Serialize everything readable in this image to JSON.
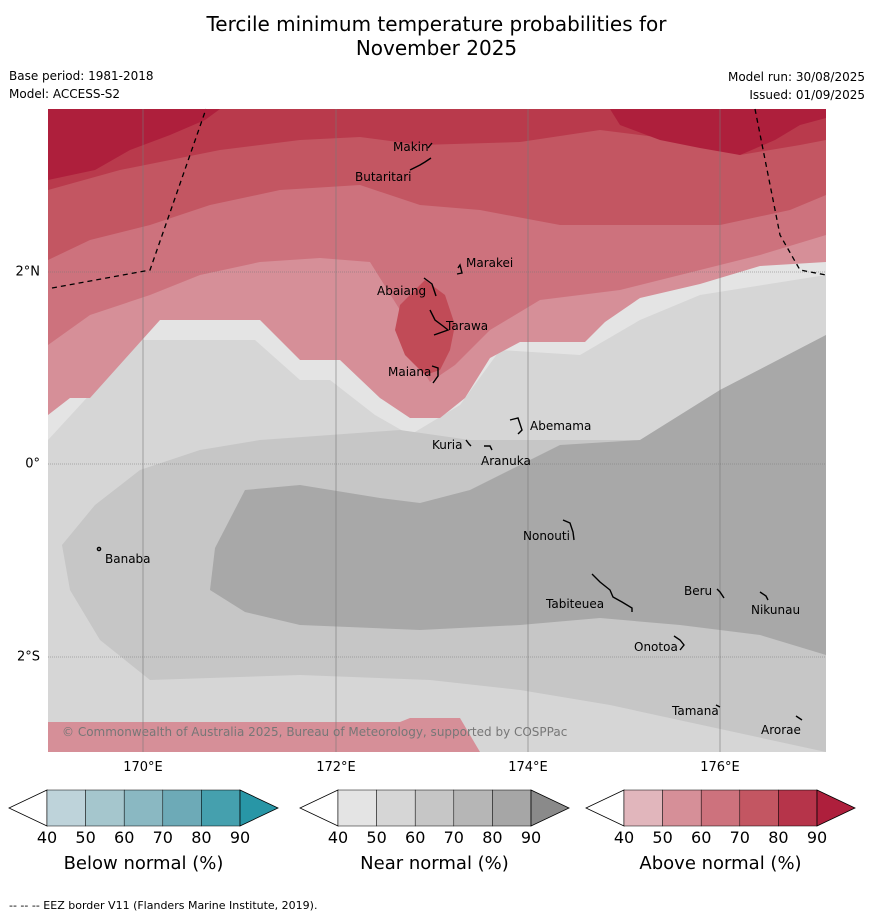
{
  "title_line1": "Tercile minimum temperature probabilities for",
  "title_line2": "November 2025",
  "meta_left": {
    "base_period": "Base period: 1981-2018",
    "model": "Model: ACCESS-S2"
  },
  "meta_right": {
    "model_run": "Model run: 30/08/2025",
    "issued": "Issued: 01/09/2025"
  },
  "map": {
    "x_ticks": [
      "170°E",
      "172°E",
      "174°E",
      "176°E"
    ],
    "y_ticks": [
      "2°N",
      "0°",
      "2°S"
    ],
    "places": [
      "Makin",
      "Butaritari",
      "Marakei",
      "Abaiang",
      "Tarawa",
      "Maiana",
      "Abemama",
      "Kuria",
      "Aranuka",
      "Nonouti",
      "Banaba",
      "Beru",
      "Tabiteuea",
      "Nikunau",
      "Onotoa",
      "Tamana",
      "Arorae"
    ],
    "copyright": "© Commonwealth of Australia 2025, Bureau of Meteorology, supported by COSPPac"
  },
  "colorbars": [
    {
      "label": "Below normal (%)",
      "ticks": [
        "40",
        "50",
        "60",
        "70",
        "80",
        "90"
      ],
      "colors": [
        "#bed3da",
        "#a5c6cd",
        "#8ab8c2",
        "#6daab7",
        "#45a0ae",
        "#2896a6"
      ]
    },
    {
      "label": "Near normal (%)",
      "ticks": [
        "40",
        "50",
        "60",
        "70",
        "80",
        "90"
      ],
      "colors": [
        "#e4e4e4",
        "#d6d6d6",
        "#c6c6c6",
        "#b6b6b6",
        "#a6a6a6",
        "#8a8a8a"
      ]
    },
    {
      "label": "Above normal (%)",
      "ticks": [
        "40",
        "50",
        "60",
        "70",
        "80",
        "90"
      ],
      "colors": [
        "#e1b6bc",
        "#d68f98",
        "#cd727d",
        "#c35662",
        "#b6344a",
        "#ae1f3c"
      ]
    }
  ],
  "footer": "--  --  -- EEZ border V11 (Flanders Marine Institute, 2019)."
}
